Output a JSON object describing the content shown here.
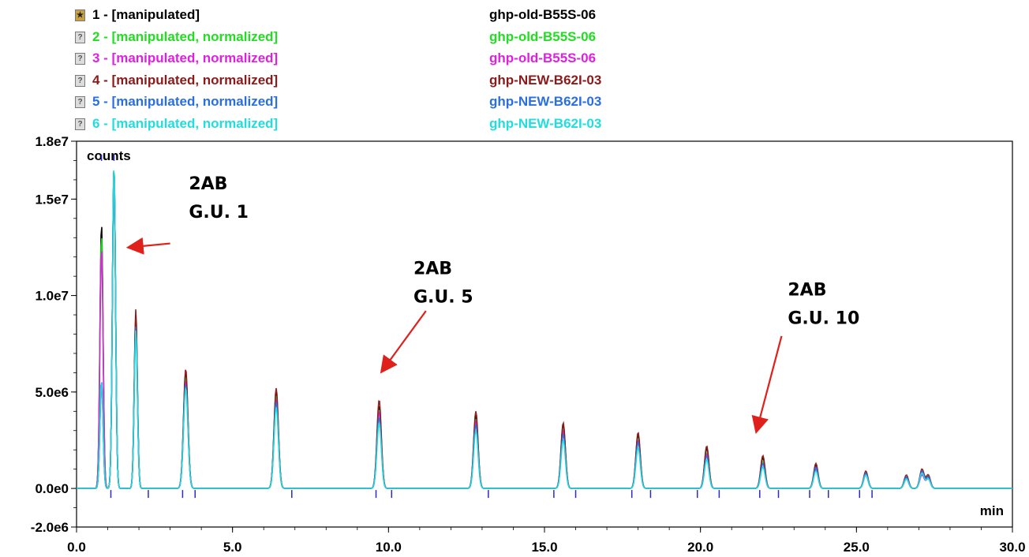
{
  "legend": [
    {
      "icon": "checked-icon",
      "label": "1 -  [manipulated]",
      "sample": "ghp-old-B55S-06",
      "color": "#000000"
    },
    {
      "icon": "unknown-icon",
      "label": "2 -  [manipulated, normalized]",
      "sample": "ghp-old-B55S-06",
      "color": "#22dd22"
    },
    {
      "icon": "unknown-icon",
      "label": "3 -  [manipulated, normalized]",
      "sample": "ghp-old-B55S-06",
      "color": "#e020e0"
    },
    {
      "icon": "unknown-icon",
      "label": "4 -  [manipulated, normalized]",
      "sample": "ghp-NEW-B62I-03",
      "color": "#8b1a1a"
    },
    {
      "icon": "unknown-icon",
      "label": "5 -  [manipulated, normalized]",
      "sample": "ghp-NEW-B62I-03",
      "color": "#2a6fe0"
    },
    {
      "icon": "unknown-icon",
      "label": "6 -  [manipulated, normalized]",
      "sample": "ghp-NEW-B62I-03",
      "color": "#22dddd"
    }
  ],
  "chart_data": {
    "type": "line",
    "ylabel": "counts",
    "xlabel": "min",
    "xlim": [
      0.0,
      30.0
    ],
    "ylim": [
      -2000000.0,
      18000000.0
    ],
    "x_ticks": [
      0.0,
      5.0,
      10.0,
      15.0,
      20.0,
      25.0,
      30.0
    ],
    "x_tick_labels": [
      "0.0",
      "5.0",
      "10.0",
      "15.0",
      "20.0",
      "25.0",
      "30.0"
    ],
    "y_ticks": [
      -2000000,
      0,
      5000000,
      10000000,
      15000000,
      18000000
    ],
    "y_tick_labels": [
      "-2.0e6",
      "0.0e0",
      "5.0e6",
      "1.0e7",
      "1.5e7",
      "1.8e7"
    ],
    "peaks_x": [
      0.8,
      1.2,
      1.9,
      3.5,
      6.4,
      9.7,
      12.8,
      15.6,
      18.0,
      20.2,
      22.0,
      23.7,
      25.3,
      26.6,
      27.1,
      27.3
    ],
    "series": [
      {
        "name": "1 - [manipulated] ghp-old-B55S-06",
        "color": "#000000",
        "peaks_y": [
          13800000,
          16800000,
          9000000,
          6000000,
          5000000,
          4300000,
          3800000,
          3300000,
          2800000,
          2100000,
          1600000,
          1200000,
          800000,
          600000,
          900000,
          600000
        ]
      },
      {
        "name": "2 - [manipulated, normalized] ghp-old-B55S-06",
        "color": "#22dd22",
        "peaks_y": [
          13200000,
          16800000,
          8800000,
          5800000,
          4800000,
          4100000,
          3600000,
          3100000,
          2600000,
          1900000,
          1400000,
          1100000,
          700000,
          500000,
          800000,
          500000
        ]
      },
      {
        "name": "3 - [manipulated, normalized] ghp-old-B55S-06",
        "color": "#e020e0",
        "peaks_y": [
          12500000,
          16700000,
          8500000,
          5600000,
          4600000,
          4000000,
          3500000,
          3000000,
          2500000,
          1800000,
          1300000,
          1000000,
          700000,
          500000,
          700000,
          500000
        ]
      },
      {
        "name": "4 - [manipulated, normalized] ghp-NEW-B62I-03",
        "color": "#8b1a1a",
        "peaks_y": [
          5600000,
          16800000,
          9300000,
          6200000,
          5200000,
          4600000,
          4000000,
          3400000,
          2900000,
          2200000,
          1700000,
          1300000,
          900000,
          700000,
          1000000,
          700000
        ]
      },
      {
        "name": "5 - [manipulated, normalized] ghp-NEW-B62I-03",
        "color": "#2a6fe0",
        "peaks_y": [
          5600000,
          16800000,
          8400000,
          5400000,
          4500000,
          3700000,
          3300000,
          2800000,
          2400000,
          1700000,
          1300000,
          1100000,
          800000,
          600000,
          900000,
          600000
        ]
      },
      {
        "name": "6 - [manipulated, normalized] ghp-NEW-B62I-03",
        "color": "#22dddd",
        "peaks_y": [
          5600000,
          16900000,
          8200000,
          5200000,
          4200000,
          3400000,
          3000000,
          2500000,
          2100000,
          1500000,
          1100000,
          900000,
          700000,
          500000,
          800000,
          500000
        ]
      }
    ],
    "top_markers_x": [
      0.8,
      1.2
    ],
    "baseline_markers_x": [
      1.1,
      2.3,
      3.4,
      3.8,
      6.9,
      9.6,
      10.1,
      13.2,
      15.3,
      16.0,
      17.8,
      18.4,
      19.9,
      20.6,
      21.9,
      22.5,
      23.5,
      24.1,
      25.1,
      25.5
    ],
    "annotations": [
      {
        "line1": "2AB",
        "line2": "G.U. 1",
        "text_x": 3.6,
        "text_y": 15500000,
        "arrow_from": [
          3.0,
          12700000
        ],
        "arrow_to": [
          1.7,
          12500000
        ]
      },
      {
        "line1": "2AB",
        "line2": "G.U. 5",
        "text_x": 10.8,
        "text_y": 11100000,
        "arrow_from": [
          11.2,
          9200000
        ],
        "arrow_to": [
          9.8,
          6100000
        ]
      },
      {
        "line1": "2AB",
        "line2": "G.U. 10",
        "text_x": 22.8,
        "text_y": 10000000,
        "arrow_from": [
          22.6,
          7900000
        ],
        "arrow_to": [
          21.8,
          3000000
        ]
      }
    ],
    "grid": false,
    "legend_position": "top"
  }
}
